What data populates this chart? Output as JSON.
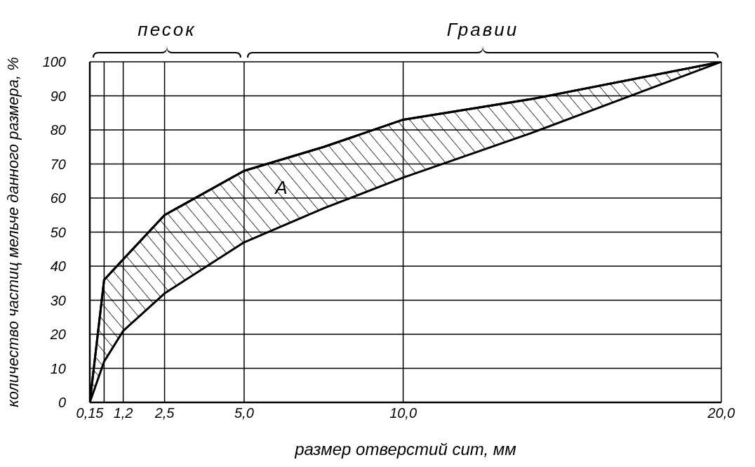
{
  "chart_data": {
    "type": "line",
    "xlabel": "размер отверстий сит, мм",
    "ylabel": "количество частиц мельче данного размера, %",
    "annotations": [
      "песок",
      "Гравии",
      "A"
    ],
    "x": [
      0.15,
      0.6,
      1.2,
      2.5,
      5,
      7.5,
      10,
      14,
      20
    ],
    "series": [
      {
        "color": "#000000",
        "values": [
          0,
          36,
          42,
          55,
          68,
          75,
          83,
          89,
          100
        ],
        "lower": [
          0,
          12,
          21,
          32,
          47,
          57,
          66,
          79,
          100
        ],
        "upper": [
          0,
          36,
          42,
          55,
          68,
          75,
          83,
          89,
          100
        ]
      }
    ],
    "xlim": [
      0.15,
      20
    ],
    "xticks": [
      {
        "value": 0.15,
        "label": "0,15"
      },
      {
        "value": 0.6,
        "label": null
      },
      {
        "value": 1.2,
        "label": "1,2"
      },
      {
        "value": 2.5,
        "label": "2,5"
      },
      {
        "value": 5,
        "label": "5,0"
      },
      {
        "value": 10,
        "label": "10,0"
      },
      {
        "value": 20,
        "label": "20,0"
      }
    ],
    "ylim": [
      0,
      100
    ],
    "yticks": [
      0,
      10,
      20,
      30,
      40,
      50,
      60,
      70,
      80,
      90,
      100
    ],
    "grid": true,
    "legend": false,
    "marker": "none",
    "line_style": "solid"
  }
}
